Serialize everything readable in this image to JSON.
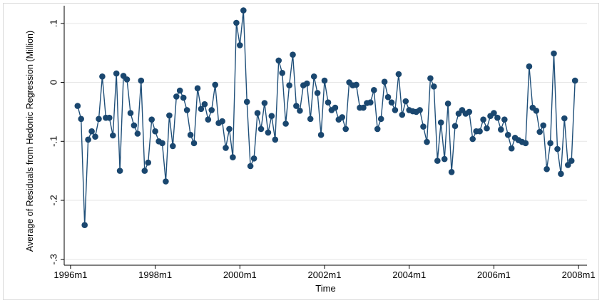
{
  "chart_data": {
    "type": "line",
    "xlabel": "Time",
    "ylabel": "Average of Residuals from Hedonic Regression (Million)",
    "x_tick_labels": [
      "1996m1",
      "1998m1",
      "2000m1",
      "2002m1",
      "2004m1",
      "2006m1",
      "2008m1"
    ],
    "x_ticks": [
      1996.0,
      1998.0,
      2000.0,
      2002.0,
      2004.0,
      2006.0,
      2008.0
    ],
    "y_tick_labels": [
      ".1",
      "0",
      "-.1",
      "-.2",
      "-.3"
    ],
    "y_ticks": [
      0.1,
      0.0,
      -0.1,
      -0.2,
      -0.3
    ],
    "xlim": [
      1995.85,
      2008.2
    ],
    "ylim": [
      -0.31,
      0.13
    ],
    "grid": true,
    "colors": {
      "line": "#1f4f79",
      "marker": "#1a476f",
      "grid": "#e6e6e6",
      "frame": "#000000"
    },
    "series": [
      {
        "x_start": "1996m3",
        "frequency": "monthly",
        "values": [
          -0.04,
          -0.062,
          -0.242,
          -0.097,
          -0.083,
          -0.092,
          -0.062,
          0.01,
          -0.06,
          -0.06,
          -0.09,
          0.015,
          -0.15,
          0.011,
          0.005,
          -0.052,
          -0.073,
          -0.087,
          0.003,
          -0.15,
          -0.136,
          -0.063,
          -0.083,
          -0.1,
          -0.103,
          -0.168,
          -0.056,
          -0.108,
          -0.024,
          -0.014,
          -0.026,
          -0.047,
          -0.089,
          -0.103,
          -0.01,
          -0.045,
          -0.037,
          -0.063,
          -0.047,
          -0.004,
          -0.069,
          -0.066,
          -0.111,
          -0.079,
          -0.127,
          0.101,
          0.063,
          0.122,
          -0.033,
          -0.142,
          -0.129,
          -0.052,
          -0.079,
          -0.035,
          -0.085,
          -0.057,
          -0.097,
          0.037,
          0.016,
          -0.07,
          -0.005,
          0.047,
          -0.04,
          -0.048,
          -0.005,
          -0.002,
          -0.062,
          0.01,
          -0.018,
          -0.089,
          0.003,
          -0.034,
          -0.047,
          -0.043,
          -0.063,
          -0.059,
          -0.079,
          0.0,
          -0.005,
          -0.004,
          -0.043,
          -0.043,
          -0.035,
          -0.034,
          -0.013,
          -0.079,
          -0.062,
          0.001,
          -0.025,
          -0.034,
          -0.047,
          0.014,
          -0.055,
          -0.032,
          -0.047,
          -0.049,
          -0.05,
          -0.047,
          -0.075,
          -0.101,
          0.007,
          -0.007,
          -0.133,
          -0.068,
          -0.13,
          -0.036,
          -0.152,
          -0.074,
          -0.053,
          -0.047,
          -0.053,
          -0.05,
          -0.096,
          -0.083,
          -0.083,
          -0.063,
          -0.078,
          -0.057,
          -0.052,
          -0.06,
          -0.08,
          -0.063,
          -0.089,
          -0.112,
          -0.094,
          -0.098,
          -0.101,
          -0.103,
          0.027,
          -0.043,
          -0.048,
          -0.084,
          -0.073,
          -0.147,
          -0.103,
          0.049,
          -0.113,
          -0.155,
          -0.061,
          -0.14,
          -0.133,
          0.003
        ]
      }
    ]
  }
}
